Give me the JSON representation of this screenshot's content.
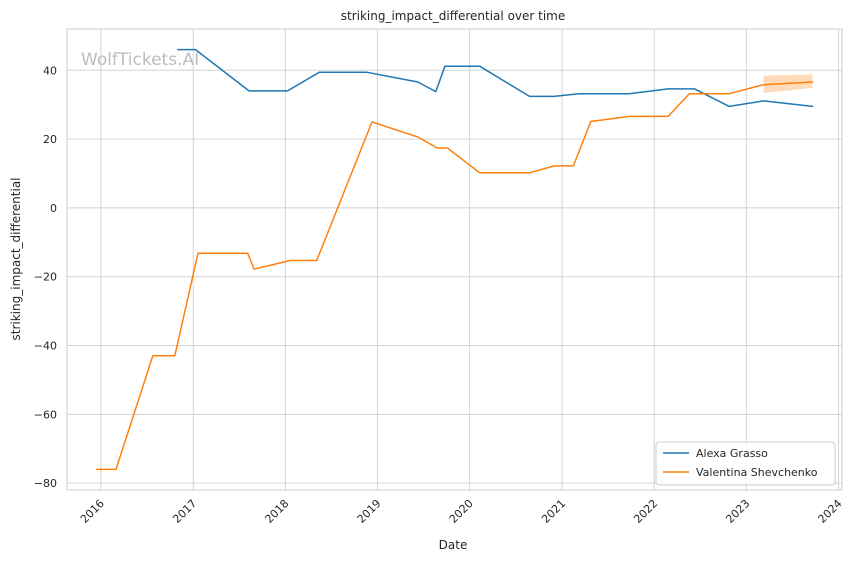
{
  "watermark": "WolfTickets.AI",
  "colors": {
    "alexa": "#1f77b4",
    "valentina": "#ff7f0e",
    "grid": "#d3d3d3",
    "axes_edge": "#cccccc",
    "band": "#ffcfa3"
  },
  "chart_data": {
    "type": "line",
    "title": "striking_impact_differential over time",
    "xlabel": "Date",
    "ylabel": "striking_impact_differential",
    "x_ticks": [
      "2016",
      "2017",
      "2018",
      "2019",
      "2020",
      "2021",
      "2022",
      "2023",
      "2024"
    ],
    "y_ticks": [
      40,
      20,
      0,
      -20,
      -40,
      -60,
      -80
    ],
    "y_tick_labels": [
      "40",
      "20",
      "0",
      "−20",
      "−40",
      "−60",
      "−80"
    ],
    "xlim": [
      "2015-08-20",
      "2024-01-15"
    ],
    "ylim": [
      -82,
      52
    ],
    "grid": true,
    "legend_position": "lower-right",
    "series": [
      {
        "name": "Alexa Grasso",
        "color": "#1f77b4",
        "points": [
          [
            "2016-11-01",
            46.0
          ],
          [
            "2017-01-10",
            46.0
          ],
          [
            "2017-08-10",
            34.0
          ],
          [
            "2018-01-10",
            34.0
          ],
          [
            "2018-05-15",
            39.4
          ],
          [
            "2018-11-20",
            39.4
          ],
          [
            "2019-06-10",
            36.6
          ],
          [
            "2019-08-20",
            33.8
          ],
          [
            "2019-09-25",
            41.2
          ],
          [
            "2020-02-10",
            41.2
          ],
          [
            "2020-08-25",
            32.4
          ],
          [
            "2020-11-30",
            32.4
          ],
          [
            "2021-03-10",
            33.2
          ],
          [
            "2021-09-25",
            33.2
          ],
          [
            "2022-02-25",
            34.6
          ],
          [
            "2022-06-10",
            34.6
          ],
          [
            "2022-10-25",
            29.5
          ],
          [
            "2023-03-10",
            31.1
          ],
          [
            "2023-09-20",
            29.5
          ]
        ]
      },
      {
        "name": "Valentina Shevchenko",
        "color": "#ff7f0e",
        "points": [
          [
            "2015-12-15",
            -76.0
          ],
          [
            "2016-03-01",
            -76.0
          ],
          [
            "2016-07-25",
            -43.0
          ],
          [
            "2016-10-20",
            -43.0
          ],
          [
            "2017-01-20",
            -13.2
          ],
          [
            "2017-08-05",
            -13.2
          ],
          [
            "2017-08-30",
            -17.8
          ],
          [
            "2018-01-20",
            -15.3
          ],
          [
            "2018-05-05",
            -15.3
          ],
          [
            "2018-12-10",
            25.0
          ],
          [
            "2019-06-10",
            20.6
          ],
          [
            "2019-08-25",
            17.4
          ],
          [
            "2019-10-05",
            17.4
          ],
          [
            "2020-02-10",
            10.2
          ],
          [
            "2020-08-25",
            10.2
          ],
          [
            "2020-12-01",
            12.2
          ],
          [
            "2021-02-15",
            12.2
          ],
          [
            "2021-04-25",
            25.1
          ],
          [
            "2021-09-25",
            26.6
          ],
          [
            "2022-02-25",
            26.6
          ],
          [
            "2022-05-20",
            33.2
          ],
          [
            "2022-10-25",
            33.2
          ],
          [
            "2023-03-10",
            35.8
          ],
          [
            "2023-09-20",
            36.6
          ]
        ],
        "confidence_band": [
          [
            "2023-03-10",
            33.4,
            38.4
          ],
          [
            "2023-09-20",
            34.9,
            38.8
          ]
        ]
      }
    ]
  }
}
